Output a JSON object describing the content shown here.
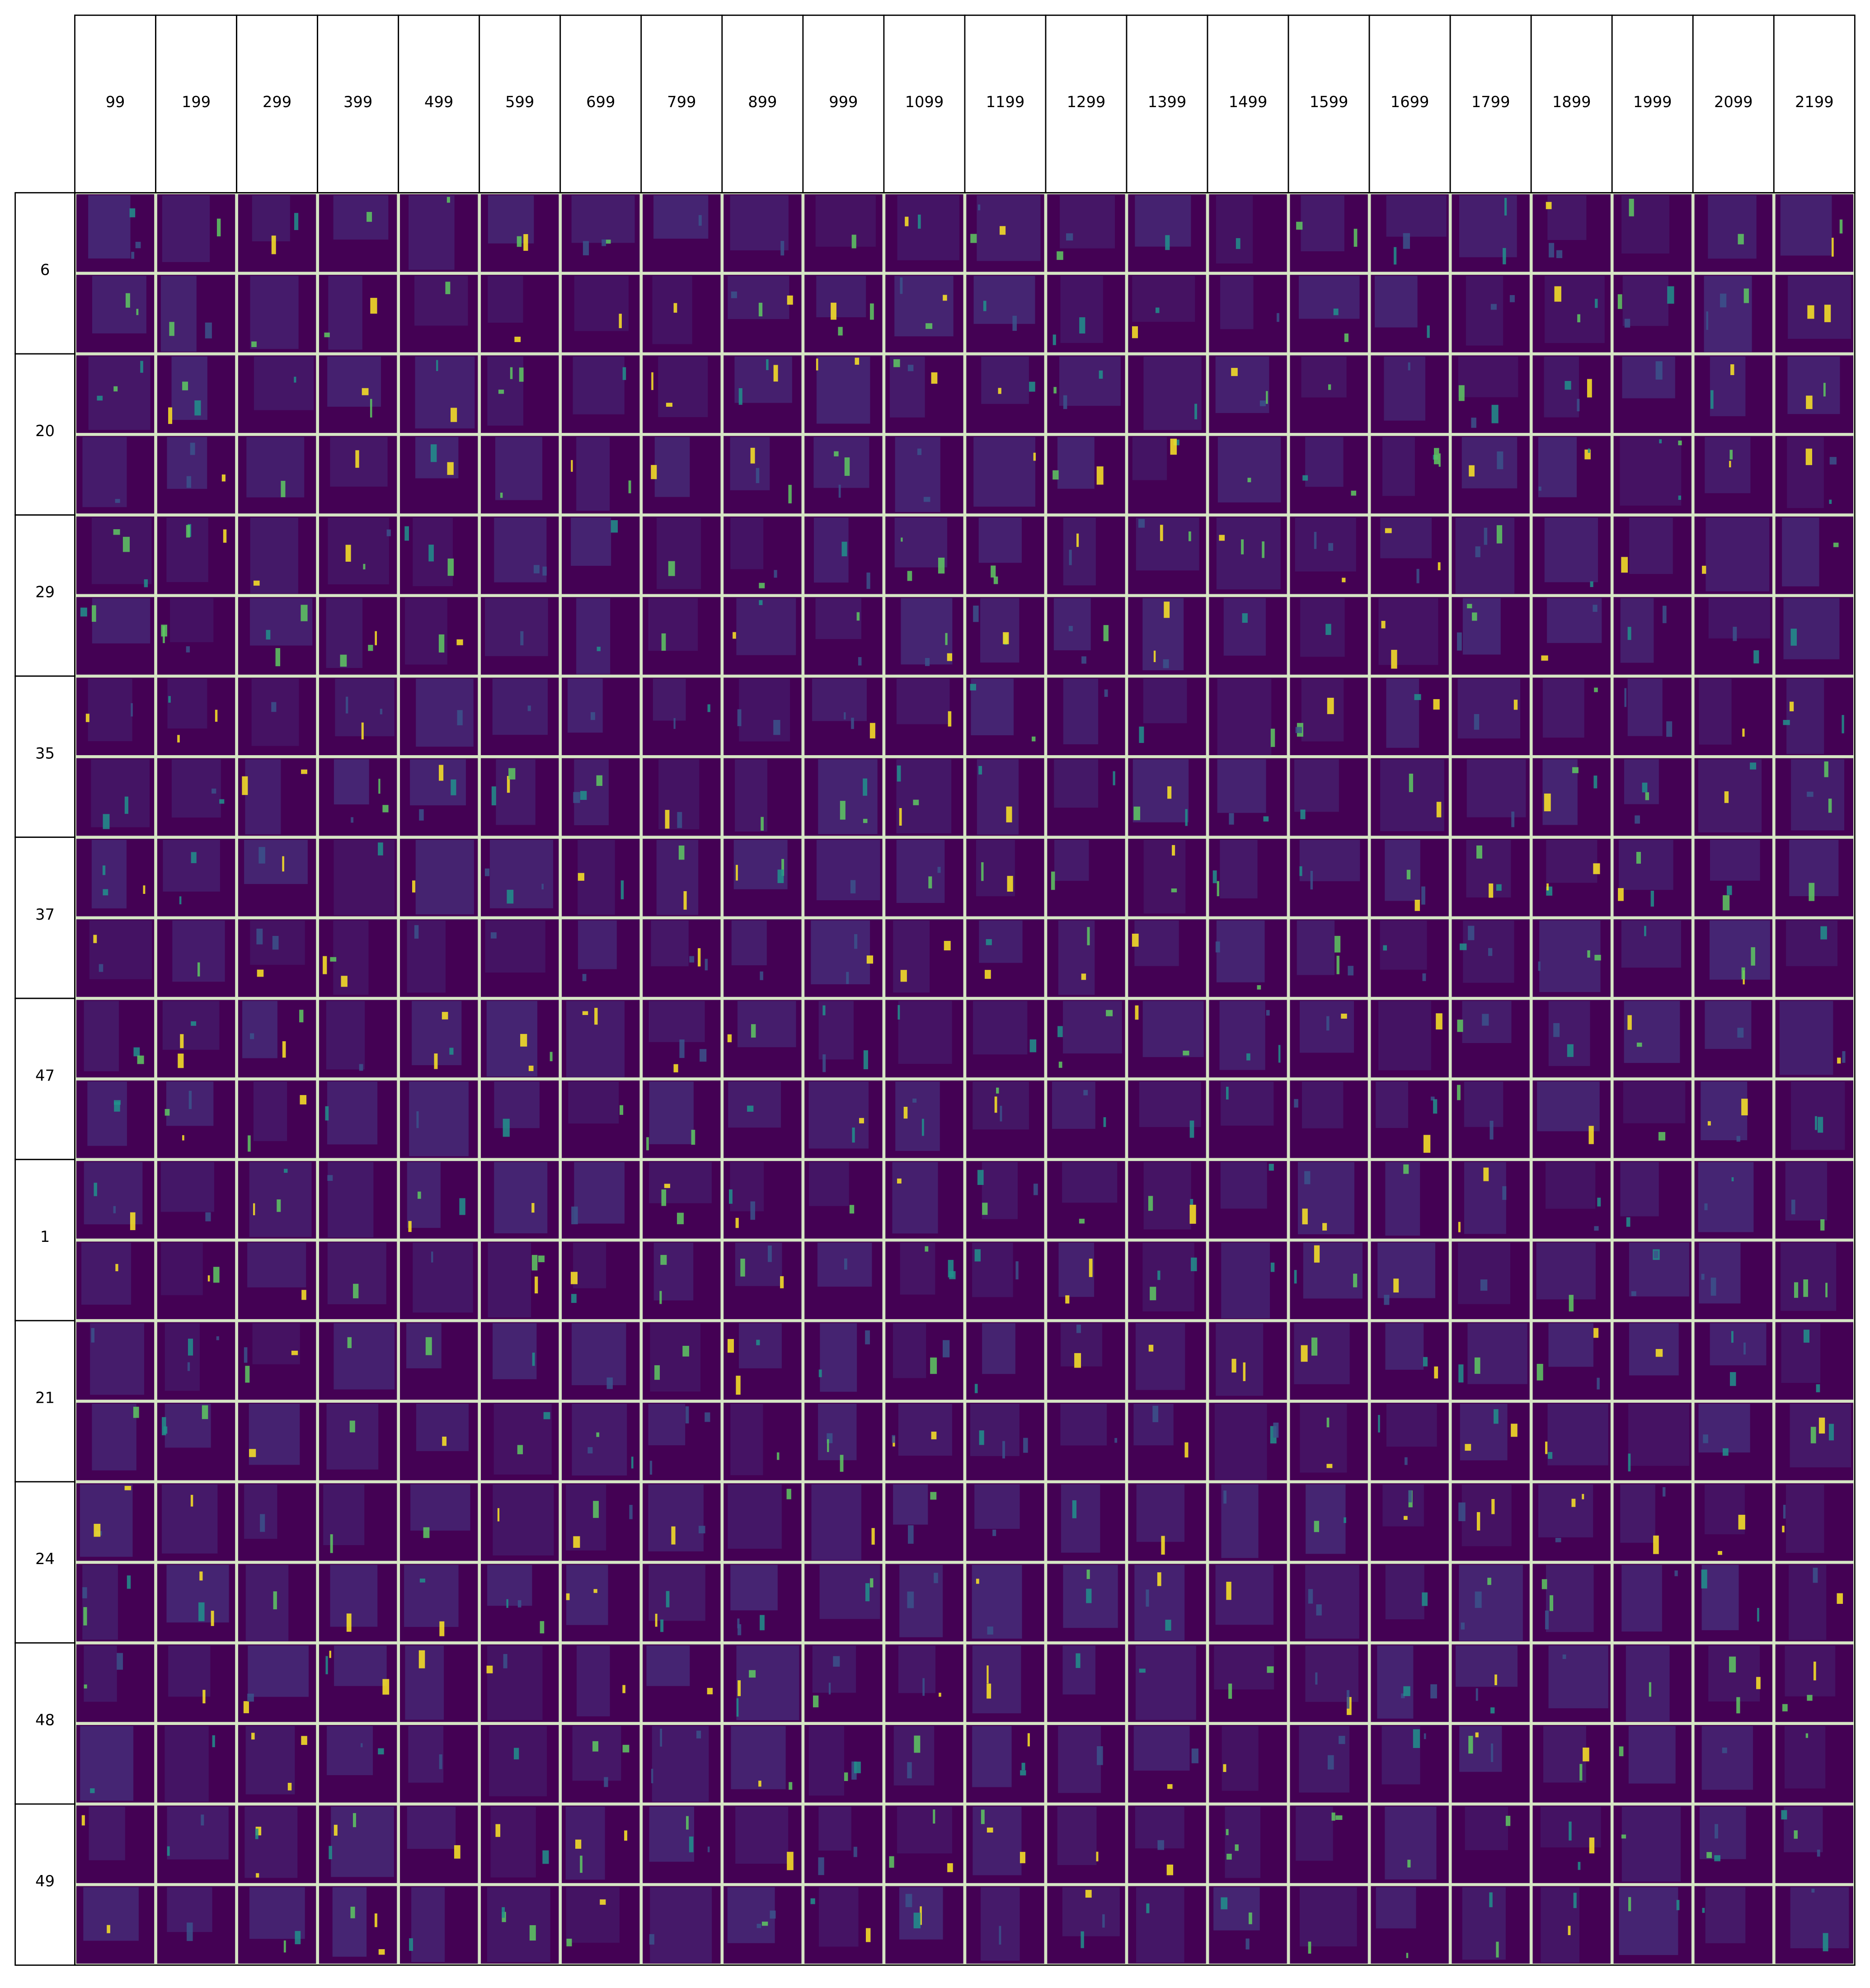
{
  "columns": [
    99,
    199,
    299,
    399,
    499,
    599,
    699,
    799,
    899,
    999,
    1099,
    1199,
    1299,
    1399,
    1499,
    1599,
    1699,
    1799,
    1899,
    1999,
    2099,
    2199
  ],
  "rows": [
    6,
    20,
    29,
    35,
    37,
    47,
    1,
    21,
    24,
    48,
    49
  ]
}
